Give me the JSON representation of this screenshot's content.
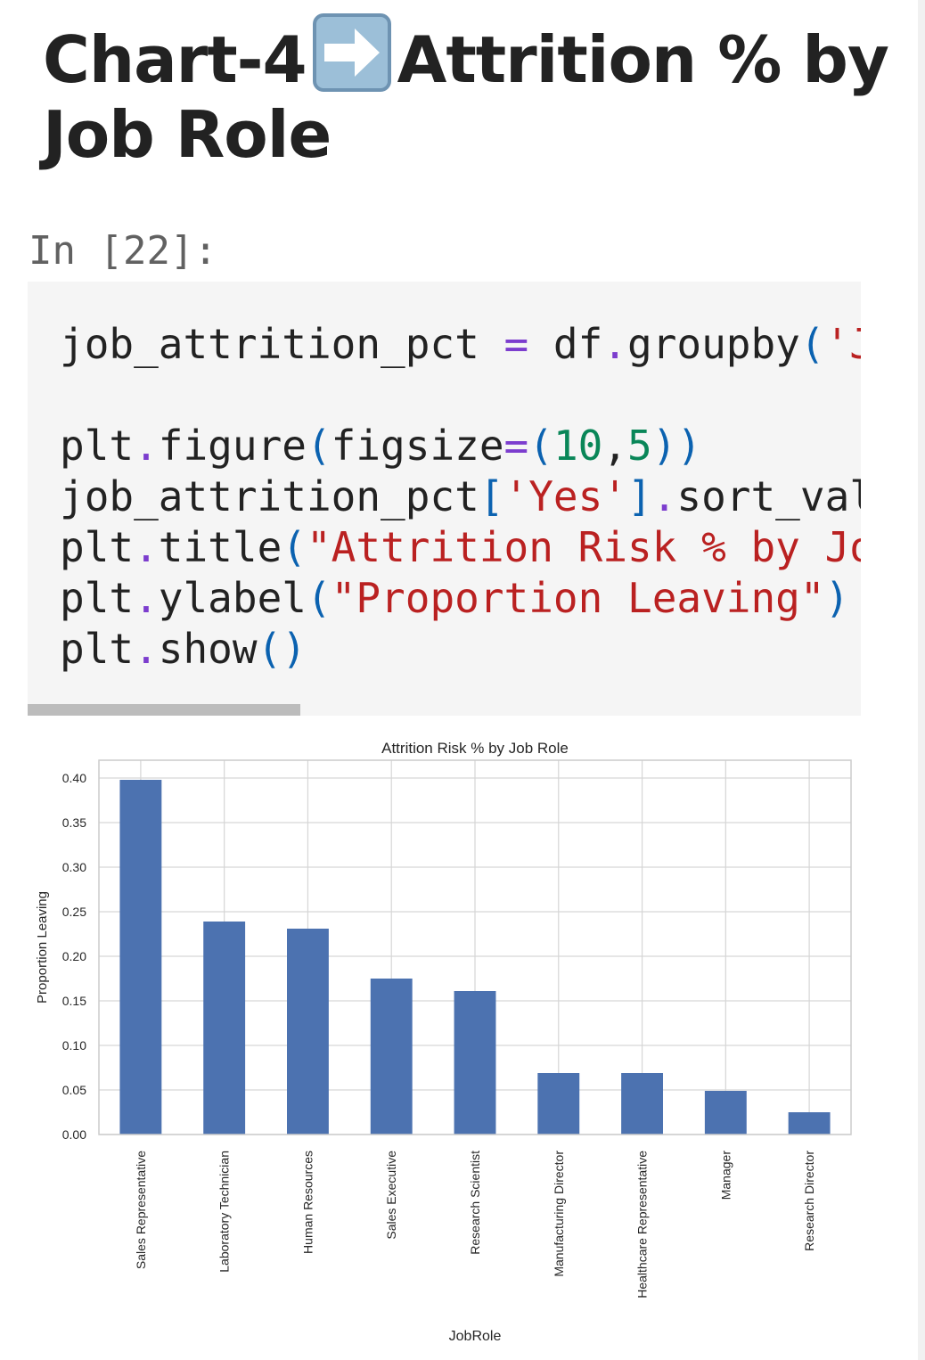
{
  "notebook": {
    "heading": {
      "prefix": "Chart-4",
      "icon": "right-arrow-emoji-icon",
      "suffix": "Attrition % by Job Role"
    },
    "cell": {
      "prompt": "In [22]:",
      "code_lines": [
        [
          {
            "t": "job_attrition_pct "
          },
          {
            "t": "=",
            "c": "op"
          },
          {
            "t": " df"
          },
          {
            "t": ".",
            "c": "op"
          },
          {
            "t": "groupby"
          },
          {
            "t": "(",
            "c": "par"
          },
          {
            "t": "'J",
            "c": "str"
          }
        ],
        [],
        [
          {
            "t": "plt"
          },
          {
            "t": ".",
            "c": "op"
          },
          {
            "t": "figure"
          },
          {
            "t": "(",
            "c": "par"
          },
          {
            "t": "figsize"
          },
          {
            "t": "=",
            "c": "op"
          },
          {
            "t": "(",
            "c": "par"
          },
          {
            "t": "10",
            "c": "num"
          },
          {
            "t": ","
          },
          {
            "t": "5",
            "c": "num"
          },
          {
            "t": "))",
            "c": "par"
          }
        ],
        [
          {
            "t": "job_attrition_pct"
          },
          {
            "t": "[",
            "c": "par"
          },
          {
            "t": "'Yes'",
            "c": "str"
          },
          {
            "t": "]",
            "c": "par"
          },
          {
            "t": ".",
            "c": "op"
          },
          {
            "t": "sort_val"
          }
        ],
        [
          {
            "t": "plt"
          },
          {
            "t": ".",
            "c": "op"
          },
          {
            "t": "title"
          },
          {
            "t": "(",
            "c": "par"
          },
          {
            "t": "\"Attrition Risk % by Jo",
            "c": "str"
          }
        ],
        [
          {
            "t": "plt"
          },
          {
            "t": ".",
            "c": "op"
          },
          {
            "t": "ylabel"
          },
          {
            "t": "(",
            "c": "par"
          },
          {
            "t": "\"Proportion Leaving\"",
            "c": "str"
          },
          {
            "t": ")",
            "c": "par"
          }
        ],
        [
          {
            "t": "plt"
          },
          {
            "t": ".",
            "c": "op"
          },
          {
            "t": "show"
          },
          {
            "t": "()",
            "c": "par"
          }
        ]
      ]
    }
  },
  "chart_data": {
    "type": "bar",
    "title": "Attrition Risk % by Job Role",
    "xlabel": "JobRole",
    "ylabel": "Proportion Leaving",
    "categories": [
      "Sales Representative",
      "Laboratory Technician",
      "Human Resources",
      "Sales Executive",
      "Research Scientist",
      "Manufacturing Director",
      "Healthcare Representative",
      "Manager",
      "Research Director"
    ],
    "values": [
      0.398,
      0.239,
      0.231,
      0.175,
      0.161,
      0.069,
      0.069,
      0.049,
      0.025
    ],
    "ylim": [
      0,
      0.42
    ],
    "yticks": [
      "0.00",
      "0.05",
      "0.10",
      "0.15",
      "0.20",
      "0.25",
      "0.30",
      "0.35",
      "0.40"
    ],
    "grid": true,
    "legend": "none",
    "colors": {
      "bar": "#4c72b0",
      "grid": "#d6d6d6",
      "axes_edge": "#cccccc",
      "text": "#262626"
    }
  }
}
